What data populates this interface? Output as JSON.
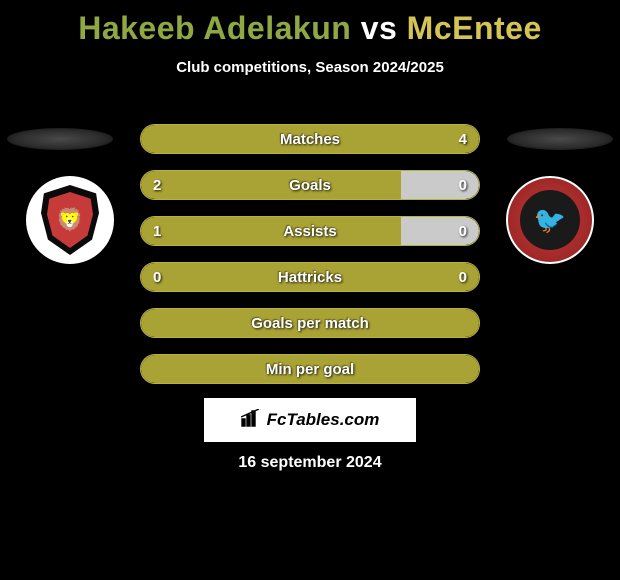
{
  "title": {
    "player1": "Hakeeb Adelakun",
    "player1_color": "#8fa843",
    "vs": "vs",
    "vs_color": "#ffffff",
    "player2": "McEntee",
    "player2_color": "#d4c355"
  },
  "subtitle": "Club competitions, Season 2024/2025",
  "olive": "#a9a235",
  "olive_border": "#b9b243",
  "grey": "#cacaca",
  "bars": [
    {
      "label": "Matches",
      "left_val": "",
      "right_val": "4",
      "left_pct": 0,
      "right_pct": 100,
      "right_color": "#a9a235",
      "left_color": "#a9a235",
      "show_left": false,
      "show_right": true
    },
    {
      "label": "Goals",
      "left_val": "2",
      "right_val": "0",
      "left_pct": 77,
      "right_pct": 23,
      "left_color": "#a9a235",
      "right_color": "#cacaca",
      "show_left": true,
      "show_right": true
    },
    {
      "label": "Assists",
      "left_val": "1",
      "right_val": "0",
      "left_pct": 77,
      "right_pct": 23,
      "left_color": "#a9a235",
      "right_color": "#cacaca",
      "show_left": true,
      "show_right": true
    },
    {
      "label": "Hattricks",
      "left_val": "0",
      "right_val": "0",
      "left_pct": 50,
      "right_pct": 50,
      "left_color": "#a9a235",
      "right_color": "#a9a235",
      "show_left": true,
      "show_right": true
    },
    {
      "label": "Goals per match",
      "left_val": "",
      "right_val": "",
      "left_pct": 100,
      "right_pct": 0,
      "left_color": "#a9a235",
      "right_color": "#a9a235",
      "show_left": false,
      "show_right": false
    },
    {
      "label": "Min per goal",
      "left_val": "",
      "right_val": "",
      "left_pct": 100,
      "right_pct": 0,
      "left_color": "#a9a235",
      "right_color": "#a9a235",
      "show_left": false,
      "show_right": false
    }
  ],
  "brand": "FcTables.com",
  "date": "16 september 2024",
  "clubs": {
    "left_name": "salford-city",
    "right_name": "walsall"
  }
}
